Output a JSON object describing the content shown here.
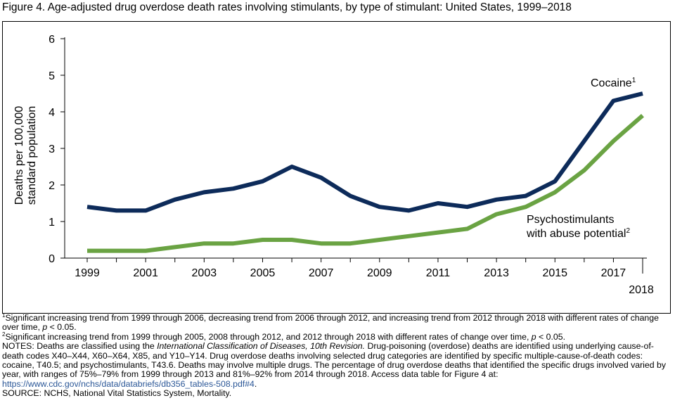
{
  "figure_title": "Figure 4. Age-adjusted drug overdose death rates involving stimulants, by type of stimulant: United States, 1999–2018",
  "colors": {
    "cocaine": "#0d2b5a",
    "psychostimulants": "#6aa343",
    "link": "#2b5797"
  },
  "chart_data": {
    "type": "line",
    "title": "",
    "ylabel": "Deaths per 100,000\nstandard population",
    "xlabel": "",
    "ylim": [
      0,
      6
    ],
    "yticks": [
      "0",
      "1",
      "2",
      "3",
      "4",
      "5",
      "6"
    ],
    "xticks": [
      "1999",
      "2001",
      "2003",
      "2005",
      "2007",
      "2009",
      "2011",
      "2013",
      "2015",
      "2017"
    ],
    "x_end_label": "2018",
    "x": [
      1999,
      2000,
      2001,
      2002,
      2003,
      2004,
      2005,
      2006,
      2007,
      2008,
      2009,
      2010,
      2011,
      2012,
      2013,
      2014,
      2015,
      2016,
      2017,
      2018
    ],
    "series": [
      {
        "name": "Cocaine",
        "sup": "1",
        "color": "#0d2b5a",
        "values": [
          1.4,
          1.3,
          1.3,
          1.6,
          1.8,
          1.9,
          2.1,
          2.5,
          2.2,
          1.7,
          1.4,
          1.3,
          1.5,
          1.4,
          1.6,
          1.7,
          2.1,
          3.2,
          4.3,
          4.5
        ]
      },
      {
        "name": "Psychostimulants\nwith abuse potential",
        "sup": "2",
        "color": "#6aa343",
        "values": [
          0.2,
          0.2,
          0.2,
          0.3,
          0.4,
          0.4,
          0.5,
          0.5,
          0.4,
          0.4,
          0.5,
          0.6,
          0.7,
          0.8,
          1.2,
          1.4,
          1.8,
          2.4,
          3.2,
          3.9
        ]
      }
    ],
    "grid": false
  },
  "footnotes": {
    "fn1_sup": "1",
    "fn1_text": "Significant increasing trend from 1999 through 2006, decreasing trend from 2006 through 2012, and increasing trend from 2012 through 2018 with different rates of change over time, ",
    "fn1_p": "p",
    "fn1_tail": " < 0.05.",
    "fn2_sup": "2",
    "fn2_text": "Significant increasing trend from 1999 through 2005, 2008 through 2012, and 2012 through 2018 with different rates of change over time, ",
    "fn2_p": "p",
    "fn2_tail": " < 0.05.",
    "notes_a": "NOTES: Deaths are classified using the ",
    "notes_icd": "International Classification of Diseases, 10th Revision.",
    "notes_b": " Drug-poisoning (overdose) deaths are identified using underlying cause-of-death codes X40–X44, X60–X64, X85, and Y10–Y14. Drug overdose deaths involving selected drug categories are identified by specific multiple-cause-of-death codes: cocaine, T40.5; and psychostimulants, T43.6. Deaths may involve multiple drugs. The percentage of drug overdose deaths that identified the specific drugs involved varied by year, with ranges of 75%–79% from 1999 through 2013 and 81%–92% from 2014 through 2018. Access data table for Figure 4 at: ",
    "notes_link": "https://www.cdc.gov/nchs/data/databriefs/db356_tables-508.pdf#4",
    "notes_end": ".",
    "source": "SOURCE: NCHS, National Vital Statistics System, Mortality."
  }
}
